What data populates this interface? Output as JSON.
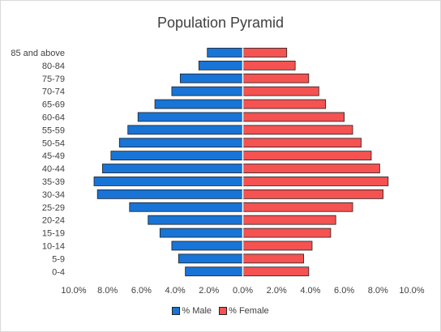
{
  "chart_data": {
    "type": "bar",
    "orientation": "horizontal",
    "title": "Population Pyramid",
    "categories": [
      "85 and above",
      "80-84",
      "75-79",
      "70-74",
      "65-69",
      "60-64",
      "55-59",
      "50-54",
      "45-49",
      "40-44",
      "35-39",
      "30-34",
      "25-29",
      "20-24",
      "15-19",
      "10-14",
      "5-9",
      "0-4"
    ],
    "series": [
      {
        "name": "% Male",
        "color": "#1874d6",
        "values": [
          2.1,
          2.6,
          3.7,
          4.2,
          5.2,
          6.2,
          6.8,
          7.3,
          7.8,
          8.3,
          8.8,
          8.6,
          6.7,
          5.6,
          4.9,
          4.2,
          3.8,
          3.4
        ]
      },
      {
        "name": "% Female",
        "color": "#f55252",
        "values": [
          2.6,
          3.1,
          3.9,
          4.5,
          4.9,
          6.0,
          6.5,
          7.0,
          7.6,
          8.1,
          8.6,
          8.3,
          6.5,
          5.5,
          5.2,
          4.1,
          3.6,
          3.9
        ]
      }
    ],
    "xlim": [
      -10,
      10
    ],
    "xticks": [
      "10.0%",
      "8.0%",
      "6.0%",
      "4.0%",
      "2.0%",
      "0.0%",
      "2.0%",
      "4.0%",
      "6.0%",
      "8.0%",
      "10.0%"
    ],
    "grid": false,
    "legend": "bottom",
    "bar_outline": "#1f1f1f"
  }
}
